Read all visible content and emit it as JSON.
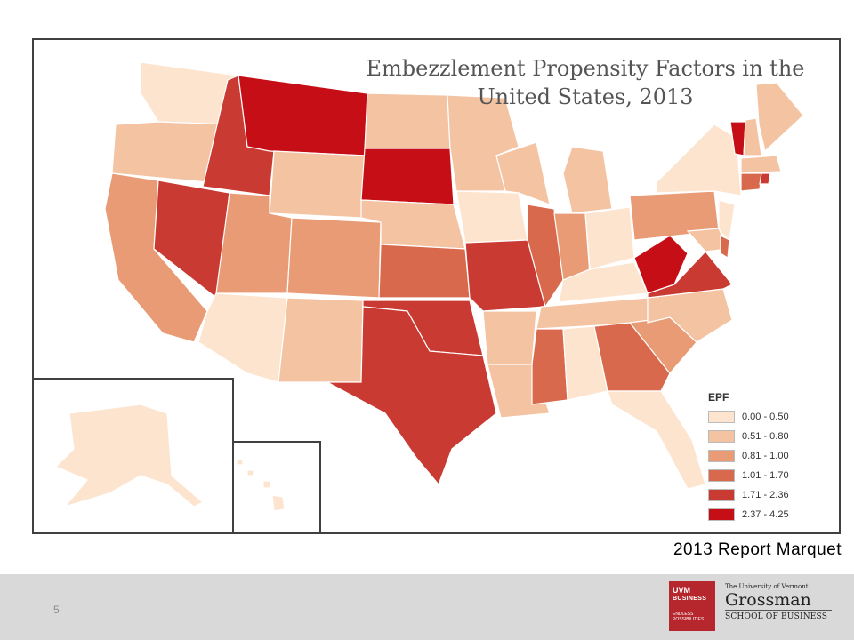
{
  "map": {
    "title_line1": "Embezzlement Propensity Factors in the",
    "title_line2": "United States, 2013",
    "legend": {
      "title": "EPF",
      "classes": [
        {
          "label": "0.00 - 0.50",
          "color": "#fde4cf"
        },
        {
          "label": "0.51 - 0.80",
          "color": "#f3c3a2"
        },
        {
          "label": "0.81 - 1.00",
          "color": "#e89b75"
        },
        {
          "label": "1.01 - 1.70",
          "color": "#d8694d"
        },
        {
          "label": "1.71 - 2.36",
          "color": "#c93a32"
        },
        {
          "label": "2.37 - 4.25",
          "color": "#c50e15"
        }
      ]
    }
  },
  "caption": "2013 Report Marquet",
  "footer": {
    "page_number": "5",
    "logo": {
      "badge_line1": "UVM",
      "badge_line2": "BUSINESS",
      "badge_line3": "ENDLESS POSSIBILITIES",
      "university": "The University of Vermont",
      "name": "Grossman",
      "school": "SCHOOL OF BUSINESS"
    }
  }
}
